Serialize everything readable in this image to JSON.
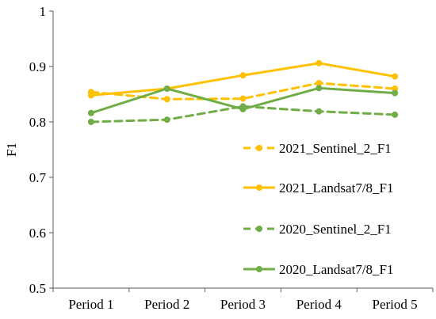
{
  "chart_data": {
    "type": "line",
    "categories": [
      "Period 1",
      "Period 2",
      "Period 3",
      "Period 4",
      "Period 5"
    ],
    "ylabel": "F1",
    "xlabel": "",
    "ylim": [
      0.5,
      1
    ],
    "yticks": [
      "0.5",
      "0.6",
      "0.7",
      "0.8",
      "0.9",
      "1"
    ],
    "grid": false,
    "legend_position": "bottom-right",
    "series": [
      {
        "name": "2021_Sentinel_2_F1",
        "color": "#FFC000",
        "dashed": true,
        "values": [
          0.854,
          0.841,
          0.842,
          0.87,
          0.86
        ]
      },
      {
        "name": "2021_Landsat7/8_F1",
        "color": "#FFC000",
        "dashed": false,
        "values": [
          0.848,
          0.86,
          0.884,
          0.906,
          0.882
        ]
      },
      {
        "name": "2020_Sentinel_2_F1",
        "color": "#70AD47",
        "dashed": true,
        "values": [
          0.8,
          0.804,
          0.828,
          0.819,
          0.813
        ]
      },
      {
        "name": "2020_Landsat7/8_F1",
        "color": "#70AD47",
        "dashed": false,
        "values": [
          0.816,
          0.86,
          0.823,
          0.861,
          0.852
        ]
      }
    ]
  }
}
